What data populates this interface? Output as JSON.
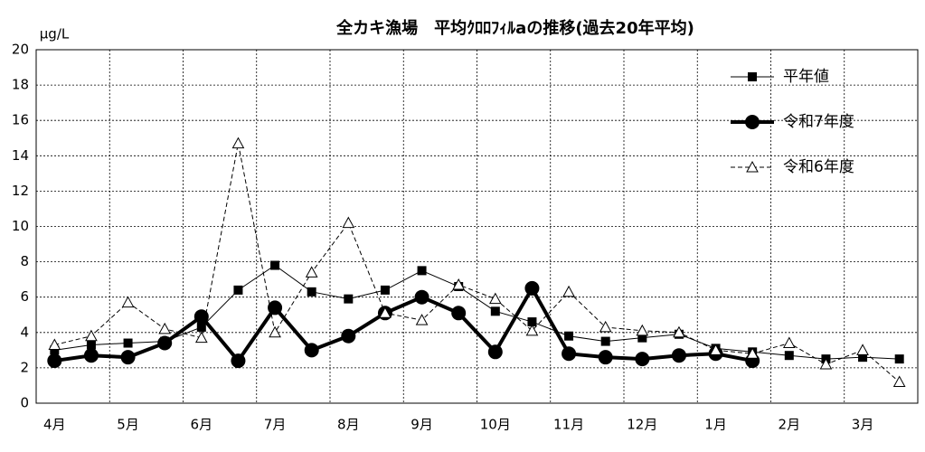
{
  "chart_data": {
    "type": "line",
    "title": "全カキ漁場　平均ｸﾛﾛﾌｨﾙaの推移(過去20年平均)",
    "y_label": "μg/L",
    "categories": [
      "4月",
      null,
      "5月",
      null,
      "6月",
      null,
      "7月",
      null,
      "8月",
      null,
      "9月",
      null,
      "10月",
      null,
      "11月",
      null,
      "12月",
      null,
      "1月",
      null,
      "2月",
      null,
      "3月",
      null
    ],
    "series": [
      {
        "name": "平年値",
        "color": "#000000",
        "marker": "square",
        "style": "solid",
        "width": 1,
        "values": [
          3.0,
          3.3,
          3.4,
          3.5,
          4.3,
          6.4,
          7.8,
          6.3,
          5.9,
          6.4,
          7.5,
          6.6,
          5.2,
          4.6,
          3.8,
          3.5,
          3.7,
          3.9,
          3.1,
          2.9,
          2.7,
          2.5,
          2.6,
          2.5
        ]
      },
      {
        "name": "令和7年度",
        "color": "#000000",
        "marker": "circle",
        "style": "solid",
        "width": 4,
        "values": [
          2.4,
          2.7,
          2.6,
          3.4,
          4.9,
          2.4,
          5.4,
          3.0,
          3.8,
          5.1,
          6.0,
          5.1,
          2.9,
          6.5,
          2.8,
          2.6,
          2.5,
          2.7,
          2.8,
          2.4,
          null,
          null,
          null,
          null
        ]
      },
      {
        "name": "令和6年度",
        "color": "#000000",
        "marker": "triangle",
        "style": "dashed",
        "width": 1,
        "values": [
          3.3,
          3.8,
          5.7,
          4.2,
          3.7,
          14.7,
          4.0,
          7.4,
          10.2,
          5.1,
          4.7,
          6.7,
          5.9,
          4.1,
          6.3,
          4.3,
          4.1,
          4.0,
          3.0,
          2.8,
          3.4,
          2.2,
          3.0,
          1.2
        ]
      }
    ],
    "ylim": [
      0,
      20
    ],
    "yticks": [
      0,
      2,
      4,
      6,
      8,
      10,
      12,
      14,
      16,
      18,
      20
    ],
    "grid": true,
    "legend": "top-right"
  }
}
